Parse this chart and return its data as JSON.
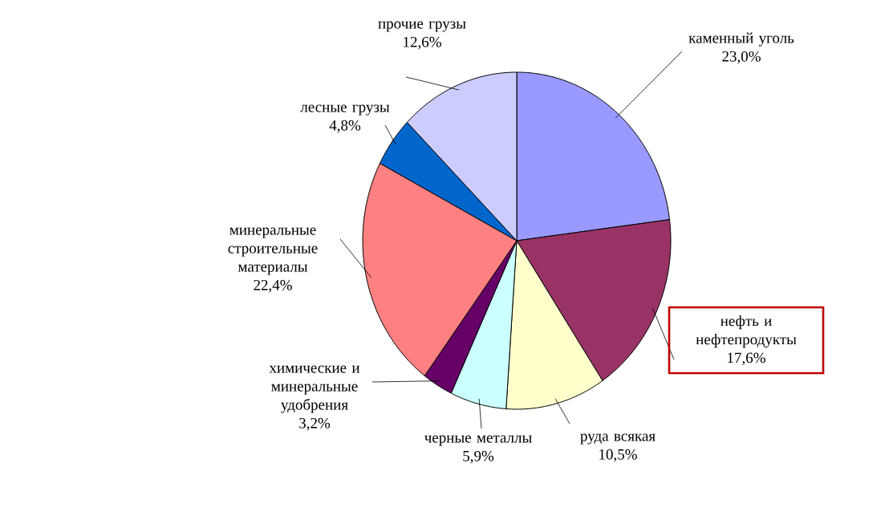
{
  "chart_data": {
    "type": "pie",
    "categories": [
      "каменный уголь",
      "нефть и нефтепродукты",
      "руда всякая",
      "черные металлы",
      "химические и минеральные удобрения",
      "минеральные строительные материалы",
      "лесные грузы",
      "прочие грузы"
    ],
    "values": [
      23.0,
      17.6,
      10.5,
      5.9,
      3.2,
      22.4,
      4.8,
      12.6
    ],
    "value_labels": [
      "23,0%",
      "17,6%",
      "10,5%",
      "5,9%",
      "3,2%",
      "22,4%",
      "4,8%",
      "12,6%"
    ],
    "colors": [
      "#9999ff",
      "#993366",
      "#ffffcc",
      "#ccffff",
      "#660066",
      "#ff8080",
      "#0066cc",
      "#ccccff"
    ]
  }
}
